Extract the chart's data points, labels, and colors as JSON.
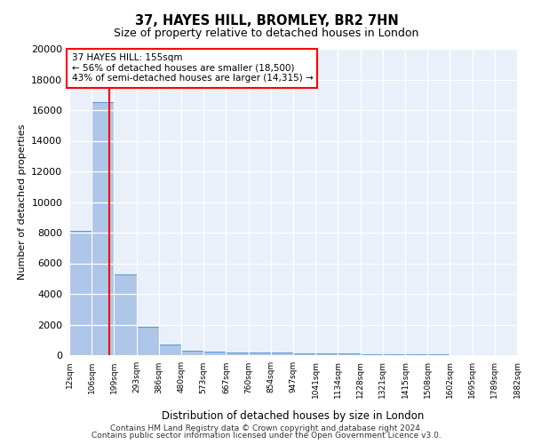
{
  "title1": "37, HAYES HILL, BROMLEY, BR2 7HN",
  "title2": "Size of property relative to detached houses in London",
  "xlabel": "Distribution of detached houses by size in London",
  "ylabel": "Number of detached properties",
  "bin_labels": [
    "12sqm",
    "106sqm",
    "199sqm",
    "293sqm",
    "386sqm",
    "480sqm",
    "573sqm",
    "667sqm",
    "760sqm",
    "854sqm",
    "947sqm",
    "1041sqm",
    "1134sqm",
    "1228sqm",
    "1321sqm",
    "1415sqm",
    "1508sqm",
    "1602sqm",
    "1695sqm",
    "1789sqm",
    "1882sqm"
  ],
  "bar_heights": [
    8100,
    16500,
    5300,
    1850,
    700,
    300,
    230,
    200,
    175,
    150,
    130,
    110,
    90,
    70,
    55,
    40,
    30,
    20,
    15,
    10
  ],
  "bar_color": "#aec6e8",
  "bar_edge_color": "#5b9bd5",
  "red_line_x": 1.78,
  "ylim": [
    0,
    20000
  ],
  "yticks": [
    0,
    2000,
    4000,
    6000,
    8000,
    10000,
    12000,
    14000,
    16000,
    18000,
    20000
  ],
  "annotation_title": "37 HAYES HILL: 155sqm",
  "annotation_line1": "← 56% of detached houses are smaller (18,500)",
  "annotation_line2": "43% of semi-detached houses are larger (14,315) →",
  "footer1": "Contains HM Land Registry data © Crown copyright and database right 2024.",
  "footer2": "Contains public sector information licensed under the Open Government Licence v3.0.",
  "plot_bg_color": "#eaf0f9"
}
